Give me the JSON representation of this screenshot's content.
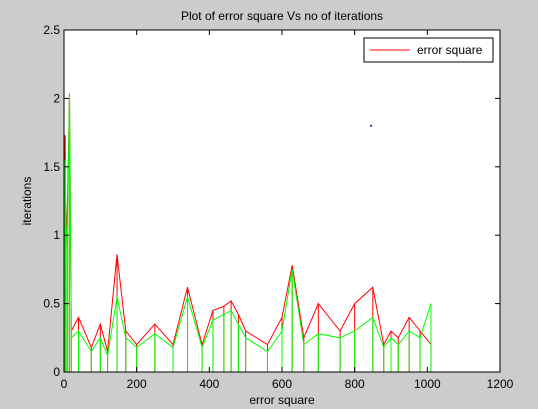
{
  "chart_data": {
    "type": "line",
    "title": "Plot of error square Vs no of iterations",
    "xlabel": "error square",
    "ylabel": "iterations",
    "xlim": [
      0,
      1200
    ],
    "ylim": [
      0,
      2.5
    ],
    "xticks": [
      0,
      200,
      400,
      600,
      800,
      1000,
      1200
    ],
    "yticks": [
      0,
      0.5,
      1,
      1.5,
      2,
      2.5
    ],
    "ytick_labels": [
      "0",
      "0.5",
      "1",
      "1.5",
      "2",
      "2.5"
    ],
    "grid": false,
    "legend": {
      "placement": "top-right",
      "entries": [
        "error square"
      ]
    },
    "series": [
      {
        "name": "error square",
        "color": "#ff0000",
        "x": [
          0,
          3,
          5,
          10,
          15,
          20,
          40,
          75,
          100,
          120,
          146,
          170,
          200,
          250,
          300,
          340,
          380,
          410,
          440,
          460,
          480,
          500,
          560,
          600,
          628,
          660,
          700,
          760,
          800,
          850,
          880,
          900,
          920,
          950,
          980,
          1010
        ],
        "y": [
          0.2,
          1.73,
          0.85,
          1.28,
          2.02,
          0.3,
          0.4,
          0.18,
          0.35,
          0.15,
          0.86,
          0.3,
          0.2,
          0.35,
          0.2,
          0.62,
          0.2,
          0.45,
          0.48,
          0.52,
          0.42,
          0.3,
          0.2,
          0.4,
          0.78,
          0.25,
          0.5,
          0.3,
          0.5,
          0.62,
          0.2,
          0.3,
          0.25,
          0.4,
          0.3,
          0.2
        ]
      },
      {
        "color": "#00ff00",
        "x": [
          0,
          3,
          6,
          10,
          15,
          20,
          40,
          75,
          100,
          120,
          146,
          170,
          200,
          250,
          300,
          340,
          380,
          410,
          440,
          460,
          480,
          500,
          560,
          600,
          628,
          660,
          700,
          760,
          800,
          850,
          880,
          900,
          920,
          950,
          980,
          1010
        ],
        "y": [
          0.15,
          1.55,
          0.95,
          1.1,
          2.04,
          0.25,
          0.3,
          0.15,
          0.25,
          0.12,
          0.55,
          0.25,
          0.18,
          0.28,
          0.18,
          0.55,
          0.18,
          0.38,
          0.42,
          0.45,
          0.35,
          0.25,
          0.15,
          0.3,
          0.75,
          0.2,
          0.28,
          0.25,
          0.3,
          0.4,
          0.18,
          0.25,
          0.2,
          0.3,
          0.25,
          0.5
        ]
      },
      {
        "color": "#0000ff",
        "x": [
          845
        ],
        "y": [
          1.8
        ]
      }
    ]
  }
}
